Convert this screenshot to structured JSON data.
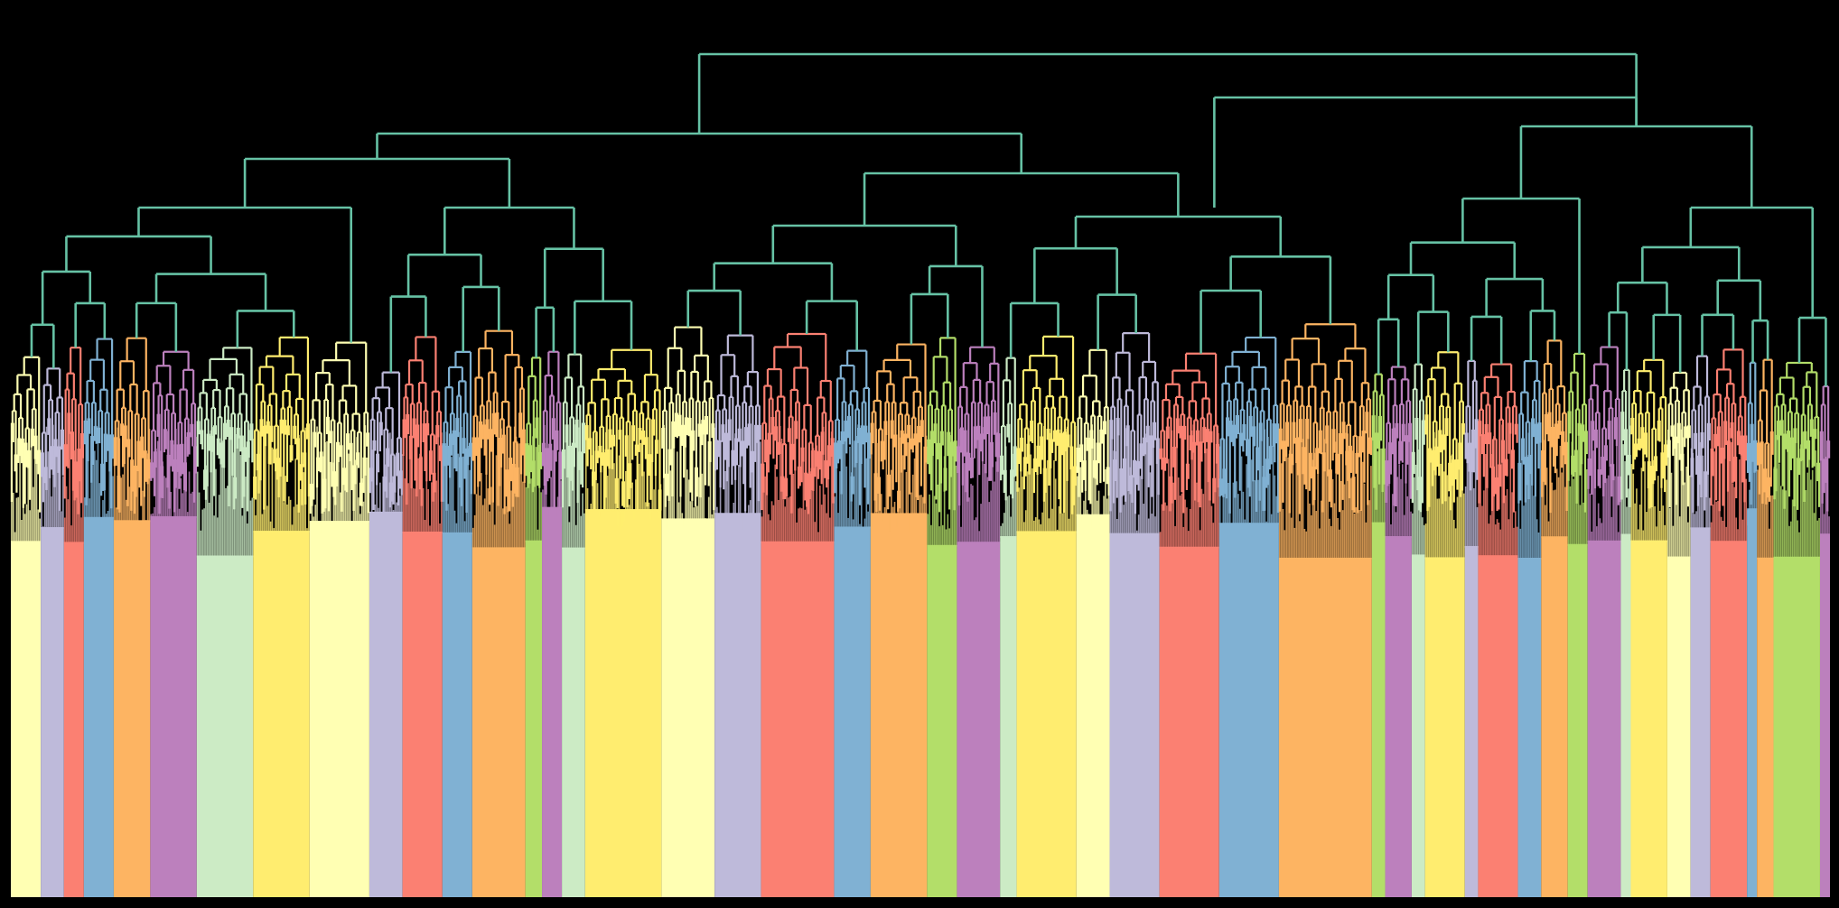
{
  "figure": {
    "background_color": "#000000",
    "trunk_color": "#66c2a5",
    "palette": [
      "#ffffb3",
      "#bebada",
      "#fb8072",
      "#80b1d3",
      "#fdb462",
      "#b3de69",
      "#bc80bd",
      "#ccebc5",
      "#ffed6f"
    ]
  },
  "chart_data": {
    "type": "dendrogram",
    "title": "",
    "xlabel": "",
    "ylabel": "",
    "axes_visible": false,
    "grid": false,
    "legend": "none",
    "linkage_color": "#66c2a5",
    "cluster_order": [
      {
        "color": "#ffffb3",
        "leaves": 18
      },
      {
        "color": "#bebada",
        "leaves": 14
      },
      {
        "color": "#fb8072",
        "leaves": 12
      },
      {
        "color": "#80b1d3",
        "leaves": 18
      },
      {
        "color": "#fdb462",
        "leaves": 22
      },
      {
        "color": "#bc80bd",
        "leaves": 28
      },
      {
        "color": "#ccebc5",
        "leaves": 34
      },
      {
        "color": "#ffed6f",
        "leaves": 34
      },
      {
        "color": "#ffffb3",
        "leaves": 36
      },
      {
        "color": "#bebada",
        "leaves": 20
      },
      {
        "color": "#fb8072",
        "leaves": 24
      },
      {
        "color": "#80b1d3",
        "leaves": 18
      },
      {
        "color": "#fdb462",
        "leaves": 32
      },
      {
        "color": "#b3de69",
        "leaves": 10
      },
      {
        "color": "#bc80bd",
        "leaves": 12
      },
      {
        "color": "#ccebc5",
        "leaves": 14
      },
      {
        "color": "#ffed6f",
        "leaves": 46
      },
      {
        "color": "#ffffb3",
        "leaves": 32
      },
      {
        "color": "#bebada",
        "leaves": 28
      },
      {
        "color": "#fb8072",
        "leaves": 44
      },
      {
        "color": "#80b1d3",
        "leaves": 22
      },
      {
        "color": "#fdb462",
        "leaves": 34
      },
      {
        "color": "#b3de69",
        "leaves": 18
      },
      {
        "color": "#bc80bd",
        "leaves": 26
      },
      {
        "color": "#ccebc5",
        "leaves": 10
      },
      {
        "color": "#ffed6f",
        "leaves": 36
      },
      {
        "color": "#ffffb3",
        "leaves": 20
      },
      {
        "color": "#bebada",
        "leaves": 30
      },
      {
        "color": "#fb8072",
        "leaves": 36
      },
      {
        "color": "#80b1d3",
        "leaves": 36
      },
      {
        "color": "#fdb462",
        "leaves": 56
      },
      {
        "color": "#b3de69",
        "leaves": 8
      },
      {
        "color": "#bc80bd",
        "leaves": 16
      },
      {
        "color": "#ccebc5",
        "leaves": 8
      },
      {
        "color": "#ffed6f",
        "leaves": 24
      },
      {
        "color": "#bebada",
        "leaves": 8
      },
      {
        "color": "#fb8072",
        "leaves": 24
      },
      {
        "color": "#80b1d3",
        "leaves": 14
      },
      {
        "color": "#fdb462",
        "leaves": 16
      },
      {
        "color": "#b3de69",
        "leaves": 12
      },
      {
        "color": "#bc80bd",
        "leaves": 20
      },
      {
        "color": "#ccebc5",
        "leaves": 6
      },
      {
        "color": "#ffed6f",
        "leaves": 22
      },
      {
        "color": "#ffffb3",
        "leaves": 14
      },
      {
        "color": "#bebada",
        "leaves": 12
      },
      {
        "color": "#fb8072",
        "leaves": 22
      },
      {
        "color": "#80b1d3",
        "leaves": 6
      },
      {
        "color": "#fdb462",
        "leaves": 10
      },
      {
        "color": "#b3de69",
        "leaves": 28
      },
      {
        "color": "#bc80bd",
        "leaves": 6
      }
    ],
    "approximate_leaf_count": 1200
  }
}
